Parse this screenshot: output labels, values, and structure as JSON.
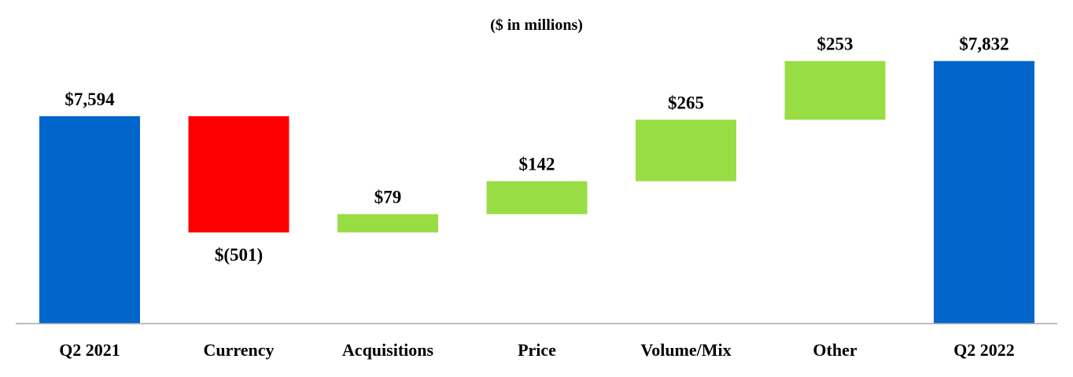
{
  "subtitle": "($ in millions)",
  "chart_data": {
    "type": "bar",
    "subtype": "waterfall",
    "title": "",
    "subtitle": "($ in millions)",
    "categories": [
      "Q2 2021",
      "Currency",
      "Acquisitions",
      "Price",
      "Volume/Mix",
      "Other",
      "Q2 2022"
    ],
    "steps": [
      {
        "category": "Q2 2021",
        "kind": "total",
        "value": 7594,
        "label": "$7,594"
      },
      {
        "category": "Currency",
        "kind": "delta",
        "value": -501,
        "label": "$(501)"
      },
      {
        "category": "Acquisitions",
        "kind": "delta",
        "value": 79,
        "label": "$79"
      },
      {
        "category": "Price",
        "kind": "delta",
        "value": 142,
        "label": "$142"
      },
      {
        "category": "Volume/Mix",
        "kind": "delta",
        "value": 265,
        "label": "$265"
      },
      {
        "category": "Other",
        "kind": "delta",
        "value": 253,
        "label": "$253"
      },
      {
        "category": "Q2 2022",
        "kind": "total",
        "value": 7832,
        "label": "$7,832"
      }
    ],
    "xlabel": "",
    "ylabel": "",
    "grid": false,
    "legend": "none",
    "colors": {
      "total": "#0066CC",
      "increase": "#99DD44",
      "decrease": "#FF0000",
      "axis": "#A6A6A6"
    }
  }
}
